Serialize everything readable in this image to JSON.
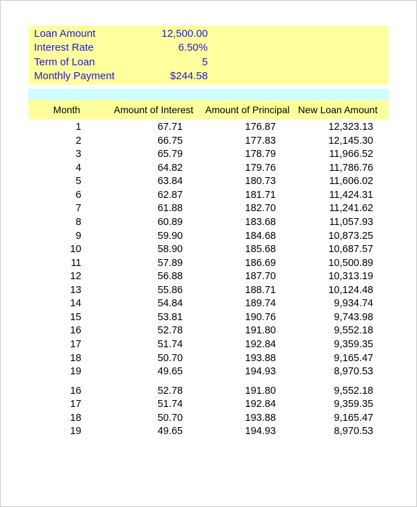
{
  "summary": {
    "loan_amount_label": "Loan Amount",
    "loan_amount_value": "12,500.00",
    "interest_rate_label": "Interest Rate",
    "interest_rate_value": "6.50%",
    "term_label": "Term of Loan",
    "term_value": "5",
    "monthly_payment_label": "Monthly Payment",
    "monthly_payment_value": "$244.58"
  },
  "colors": {
    "summary_bg": "#ffff9e",
    "summary_text": "#2018d6",
    "spacer_bg": "#ccffff",
    "body_bg": "#ffffff",
    "text": "#000000"
  },
  "headers": {
    "month": "Month",
    "interest": "Amount of Interest",
    "principal": "Amount of Principal",
    "balance": "New Loan Amount"
  },
  "rows_a": [
    {
      "m": "1",
      "i": "67.71",
      "p": "176.87",
      "b": "12,323.13"
    },
    {
      "m": "2",
      "i": "66.75",
      "p": "177.83",
      "b": "12,145.30"
    },
    {
      "m": "3",
      "i": "65.79",
      "p": "178.79",
      "b": "11,966.52"
    },
    {
      "m": "4",
      "i": "64.82",
      "p": "179.76",
      "b": "11,786.76"
    },
    {
      "m": "5",
      "i": "63.84",
      "p": "180.73",
      "b": "11,606.02"
    },
    {
      "m": "6",
      "i": "62.87",
      "p": "181.71",
      "b": "11,424.31"
    },
    {
      "m": "7",
      "i": "61.88",
      "p": "182.70",
      "b": "11,241.62"
    },
    {
      "m": "8",
      "i": "60.89",
      "p": "183.68",
      "b": "11,057.93"
    },
    {
      "m": "9",
      "i": "59.90",
      "p": "184.68",
      "b": "10,873.25"
    },
    {
      "m": "10",
      "i": "58.90",
      "p": "185.68",
      "b": "10,687.57"
    },
    {
      "m": "11",
      "i": "57.89",
      "p": "186.69",
      "b": "10,500.89"
    },
    {
      "m": "12",
      "i": "56.88",
      "p": "187.70",
      "b": "10,313.19"
    },
    {
      "m": "13",
      "i": "55.86",
      "p": "188.71",
      "b": "10,124.48"
    },
    {
      "m": "14",
      "i": "54.84",
      "p": "189.74",
      "b": "9,934.74"
    },
    {
      "m": "15",
      "i": "53.81",
      "p": "190.76",
      "b": "9,743.98"
    },
    {
      "m": "16",
      "i": "52.78",
      "p": "191.80",
      "b": "9,552.18"
    },
    {
      "m": "17",
      "i": "51.74",
      "p": "192.84",
      "b": "9,359.35"
    },
    {
      "m": "18",
      "i": "50.70",
      "p": "193.88",
      "b": "9,165.47"
    },
    {
      "m": "19",
      "i": "49.65",
      "p": "194.93",
      "b": "8,970.53"
    }
  ],
  "rows_b": [
    {
      "m": "16",
      "i": "52.78",
      "p": "191.80",
      "b": "9,552.18"
    },
    {
      "m": "17",
      "i": "51.74",
      "p": "192.84",
      "b": "9,359.35"
    },
    {
      "m": "18",
      "i": "50.70",
      "p": "193.88",
      "b": "9,165.47"
    },
    {
      "m": "19",
      "i": "49.65",
      "p": "194.93",
      "b": "8,970.53"
    }
  ]
}
